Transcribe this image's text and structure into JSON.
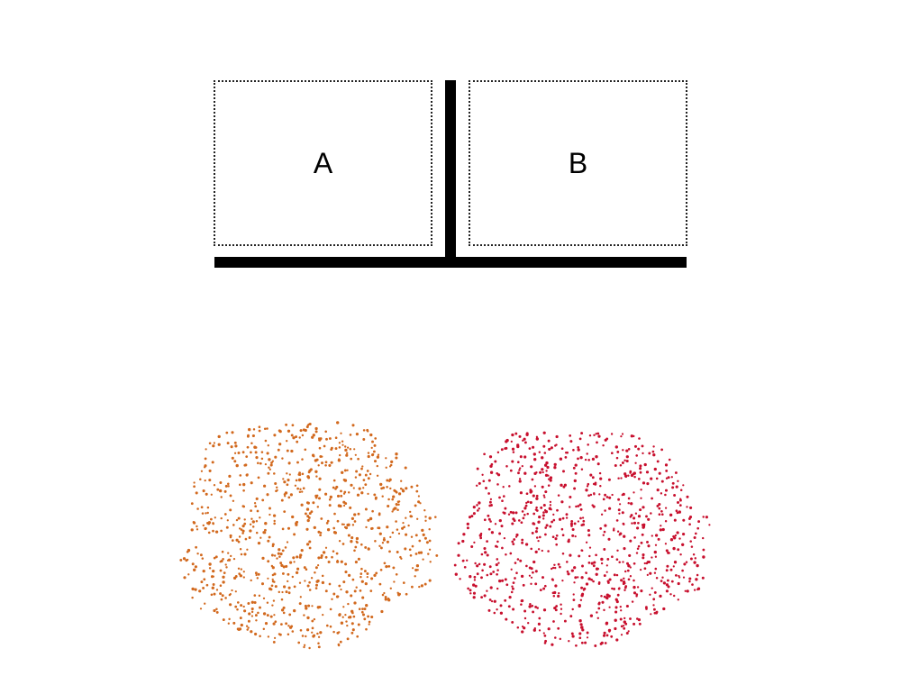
{
  "containers": [
    {
      "label": "A",
      "dot_color": "#d2691e"
    },
    {
      "label": "B",
      "dot_color": "#c8102e"
    }
  ]
}
